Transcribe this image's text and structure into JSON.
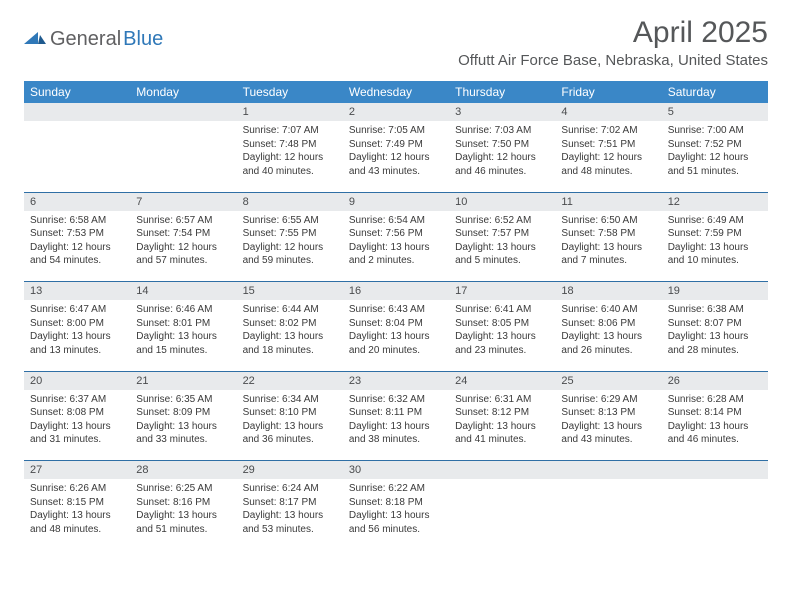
{
  "logo": {
    "word1": "General",
    "word2": "Blue"
  },
  "title": "April 2025",
  "location": "Offutt Air Force Base, Nebraska, United States",
  "colors": {
    "header_bg": "#3a87c7",
    "header_text": "#ffffff",
    "daynum_bg": "#e8eaec",
    "rule": "#2f6fa5",
    "title_text": "#555759",
    "logo_gray": "#606062",
    "logo_blue": "#2f78b8"
  },
  "weekdays": [
    "Sunday",
    "Monday",
    "Tuesday",
    "Wednesday",
    "Thursday",
    "Friday",
    "Saturday"
  ],
  "weeks": [
    [
      null,
      null,
      {
        "n": "1",
        "sr": "7:07 AM",
        "ss": "7:48 PM",
        "dl": "12 hours and 40 minutes."
      },
      {
        "n": "2",
        "sr": "7:05 AM",
        "ss": "7:49 PM",
        "dl": "12 hours and 43 minutes."
      },
      {
        "n": "3",
        "sr": "7:03 AM",
        "ss": "7:50 PM",
        "dl": "12 hours and 46 minutes."
      },
      {
        "n": "4",
        "sr": "7:02 AM",
        "ss": "7:51 PM",
        "dl": "12 hours and 48 minutes."
      },
      {
        "n": "5",
        "sr": "7:00 AM",
        "ss": "7:52 PM",
        "dl": "12 hours and 51 minutes."
      }
    ],
    [
      {
        "n": "6",
        "sr": "6:58 AM",
        "ss": "7:53 PM",
        "dl": "12 hours and 54 minutes."
      },
      {
        "n": "7",
        "sr": "6:57 AM",
        "ss": "7:54 PM",
        "dl": "12 hours and 57 minutes."
      },
      {
        "n": "8",
        "sr": "6:55 AM",
        "ss": "7:55 PM",
        "dl": "12 hours and 59 minutes."
      },
      {
        "n": "9",
        "sr": "6:54 AM",
        "ss": "7:56 PM",
        "dl": "13 hours and 2 minutes."
      },
      {
        "n": "10",
        "sr": "6:52 AM",
        "ss": "7:57 PM",
        "dl": "13 hours and 5 minutes."
      },
      {
        "n": "11",
        "sr": "6:50 AM",
        "ss": "7:58 PM",
        "dl": "13 hours and 7 minutes."
      },
      {
        "n": "12",
        "sr": "6:49 AM",
        "ss": "7:59 PM",
        "dl": "13 hours and 10 minutes."
      }
    ],
    [
      {
        "n": "13",
        "sr": "6:47 AM",
        "ss": "8:00 PM",
        "dl": "13 hours and 13 minutes."
      },
      {
        "n": "14",
        "sr": "6:46 AM",
        "ss": "8:01 PM",
        "dl": "13 hours and 15 minutes."
      },
      {
        "n": "15",
        "sr": "6:44 AM",
        "ss": "8:02 PM",
        "dl": "13 hours and 18 minutes."
      },
      {
        "n": "16",
        "sr": "6:43 AM",
        "ss": "8:04 PM",
        "dl": "13 hours and 20 minutes."
      },
      {
        "n": "17",
        "sr": "6:41 AM",
        "ss": "8:05 PM",
        "dl": "13 hours and 23 minutes."
      },
      {
        "n": "18",
        "sr": "6:40 AM",
        "ss": "8:06 PM",
        "dl": "13 hours and 26 minutes."
      },
      {
        "n": "19",
        "sr": "6:38 AM",
        "ss": "8:07 PM",
        "dl": "13 hours and 28 minutes."
      }
    ],
    [
      {
        "n": "20",
        "sr": "6:37 AM",
        "ss": "8:08 PM",
        "dl": "13 hours and 31 minutes."
      },
      {
        "n": "21",
        "sr": "6:35 AM",
        "ss": "8:09 PM",
        "dl": "13 hours and 33 minutes."
      },
      {
        "n": "22",
        "sr": "6:34 AM",
        "ss": "8:10 PM",
        "dl": "13 hours and 36 minutes."
      },
      {
        "n": "23",
        "sr": "6:32 AM",
        "ss": "8:11 PM",
        "dl": "13 hours and 38 minutes."
      },
      {
        "n": "24",
        "sr": "6:31 AM",
        "ss": "8:12 PM",
        "dl": "13 hours and 41 minutes."
      },
      {
        "n": "25",
        "sr": "6:29 AM",
        "ss": "8:13 PM",
        "dl": "13 hours and 43 minutes."
      },
      {
        "n": "26",
        "sr": "6:28 AM",
        "ss": "8:14 PM",
        "dl": "13 hours and 46 minutes."
      }
    ],
    [
      {
        "n": "27",
        "sr": "6:26 AM",
        "ss": "8:15 PM",
        "dl": "13 hours and 48 minutes."
      },
      {
        "n": "28",
        "sr": "6:25 AM",
        "ss": "8:16 PM",
        "dl": "13 hours and 51 minutes."
      },
      {
        "n": "29",
        "sr": "6:24 AM",
        "ss": "8:17 PM",
        "dl": "13 hours and 53 minutes."
      },
      {
        "n": "30",
        "sr": "6:22 AM",
        "ss": "8:18 PM",
        "dl": "13 hours and 56 minutes."
      },
      null,
      null,
      null
    ]
  ],
  "labels": {
    "sunrise": "Sunrise: ",
    "sunset": "Sunset: ",
    "daylight": "Daylight: "
  }
}
